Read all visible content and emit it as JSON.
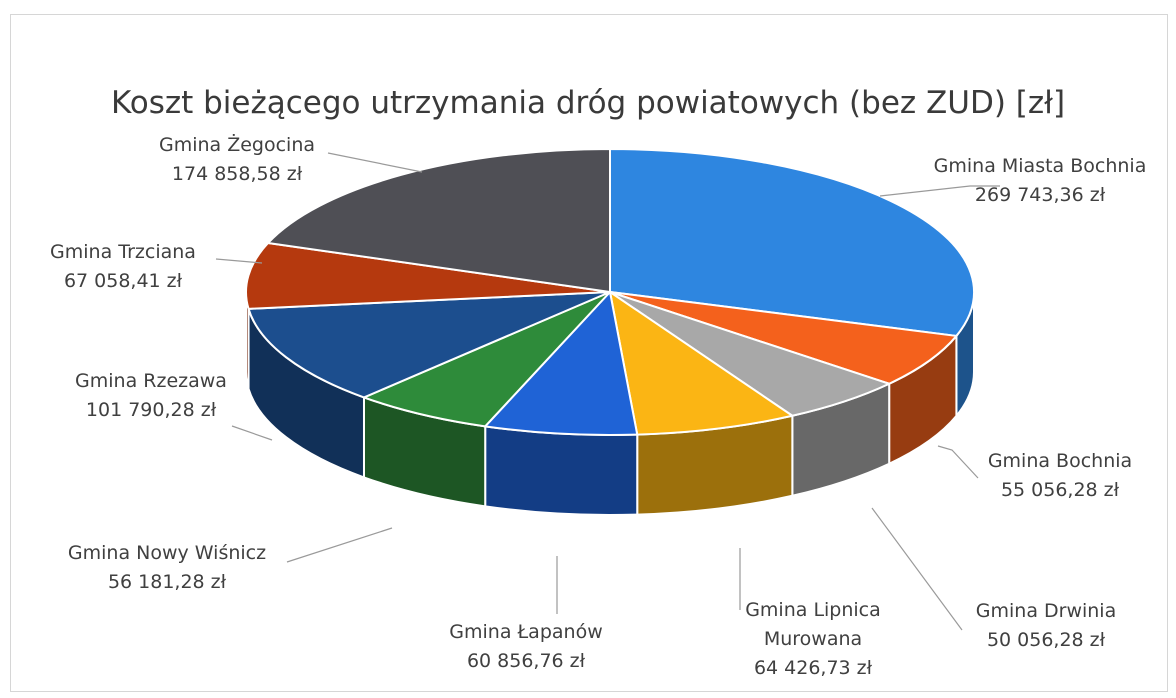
{
  "chart_data": {
    "type": "pie",
    "title": "Koszt bieżącego utrzymania dróg powiatowych (bez ZUD) [zł]",
    "slices": [
      {
        "name": "Gmina Miasta Bochnia",
        "value": 269743.36,
        "value_label": "269 743,36 zł",
        "color": "#2e86e0"
      },
      {
        "name": "Gmina Bochnia",
        "value": 55056.28,
        "value_label": "55 056,28 zł",
        "color": "#f4611c"
      },
      {
        "name": "Gmina Drwinia",
        "value": 50056.28,
        "value_label": "50 056,28 zł",
        "color": "#a8a8a8"
      },
      {
        "name": "Gmina Lipnica Murowana",
        "name_lines": [
          "Gmina Lipnica",
          "Murowana"
        ],
        "value": 64426.73,
        "value_label": "64 426,73 zł",
        "color": "#fbb514"
      },
      {
        "name": "Gmina Łapanów",
        "value": 60856.76,
        "value_label": "60 856,76 zł",
        "color": "#1f63d6"
      },
      {
        "name": "Gmina Nowy Wiśnicz",
        "value": 56181.28,
        "value_label": "56 181,28 zł",
        "color": "#2e8b3a"
      },
      {
        "name": "Gmina Rzezawa",
        "value": 101790.28,
        "value_label": "101 790,28 zł",
        "color": "#1c4e8e"
      },
      {
        "name": "Gmina Trzciana",
        "value": 67058.41,
        "value_label": "67 058,41 zł",
        "color": "#b5390e"
      },
      {
        "name": "Gmina Żegocina",
        "value": 174858.58,
        "value_label": "174 858,58 zł",
        "color": "#4f4f55"
      }
    ],
    "start_angle": "top",
    "direction": "clockwise",
    "style": "3d-tilted",
    "legend": "none",
    "data_labels": "outside-with-leader-lines"
  }
}
